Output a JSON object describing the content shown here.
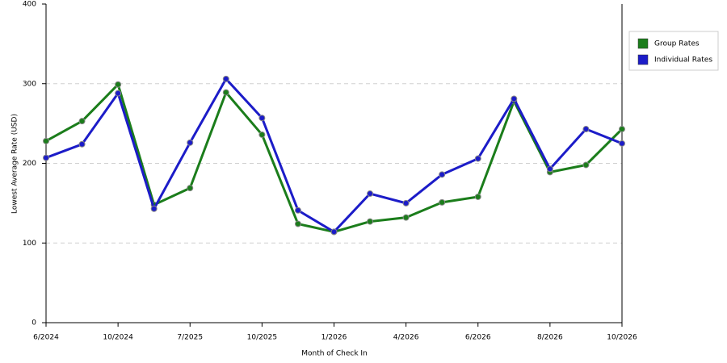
{
  "chart_data": {
    "type": "line",
    "xlabel": "Month of Check In",
    "ylabel": "Lowest Average Rate (USD)",
    "categories": [
      "6/2024",
      null,
      "10/2024",
      null,
      "7/2025",
      null,
      "10/2025",
      null,
      "1/2026",
      null,
      "4/2026",
      null,
      "6/2026",
      null,
      "8/2026",
      null,
      "10/2026"
    ],
    "series": [
      {
        "name": "Group Rates",
        "color": "#1b7d1b",
        "values": [
          228,
          253,
          299,
          148,
          169,
          289,
          236,
          124,
          114,
          127,
          132,
          151,
          158,
          278,
          189,
          198,
          243
        ]
      },
      {
        "name": "Individual Rates",
        "color": "#1c1cc8",
        "values": [
          207,
          224,
          288,
          143,
          226,
          306,
          257,
          141,
          114,
          162,
          150,
          186,
          206,
          281,
          193,
          243,
          225
        ]
      }
    ],
    "ylim": [
      0,
      400
    ],
    "yticks": [
      0,
      100,
      200,
      300,
      400
    ],
    "grid": true,
    "legend": "top-right"
  }
}
